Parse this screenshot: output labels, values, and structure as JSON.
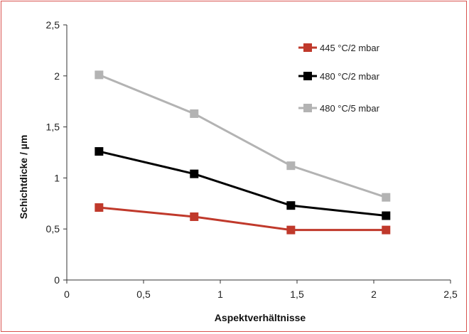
{
  "chart_data": {
    "type": "line",
    "title": "",
    "xlabel": "Aspektverhältnisse",
    "ylabel": "Schichtdicke / µm",
    "xlim": [
      0,
      2.5
    ],
    "ylim": [
      0,
      2.5
    ],
    "x_ticks": [
      "0",
      "0,5",
      "1",
      "1,5",
      "2",
      "2,5"
    ],
    "y_ticks": [
      "0",
      "0,5",
      "1",
      "1,5",
      "2",
      "2,5"
    ],
    "grid": false,
    "legend_position": "top-right",
    "x": [
      0.21,
      0.83,
      1.46,
      2.08
    ],
    "series": [
      {
        "name": "445 °C/2 mbar",
        "color": "#c0392b",
        "values": [
          0.71,
          0.62,
          0.49,
          0.49
        ]
      },
      {
        "name": "480 °C/2 mbar",
        "color": "#000000",
        "values": [
          1.26,
          1.04,
          0.73,
          0.63
        ]
      },
      {
        "name": "480 °C/5 mbar",
        "color": "#b3b3b3",
        "values": [
          2.01,
          1.63,
          1.12,
          0.81
        ]
      }
    ]
  }
}
